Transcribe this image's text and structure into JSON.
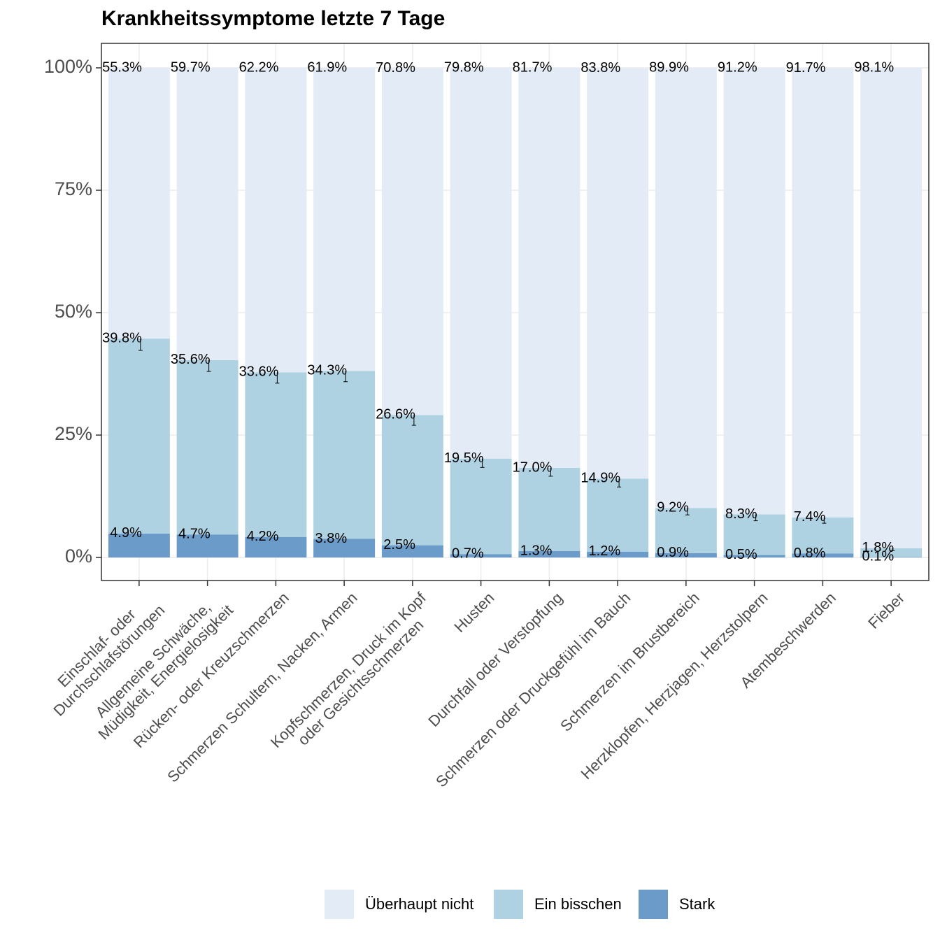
{
  "chart_data": {
    "type": "stacked_bar",
    "title": "Krankheitssymptome letzte 7 Tage",
    "categories": [
      "Einschlaf- oder\nDurchschlafstörungen",
      "Allgemeine Schwäche,\nMüdigkeit, Energielosigkeit",
      "Rücken- oder Kreuzschmerzen",
      "Schmerzen Schultern, Nacken, Armen",
      "Kopfschmerzen, Druck im Kopf\noder Gesichtsschmerzen",
      "Husten",
      "Durchfall oder Verstopfung",
      "Schmerzen oder Druckgefühl im Bauch",
      "Schmerzen im Brustbereich",
      "Herzklopfen, Herzjagen, Herzstolpern",
      "Atembeschwerden",
      "Fieber"
    ],
    "series": [
      {
        "name": "Überhaupt nicht",
        "color": "#e3ecf6",
        "values": [
          55.3,
          59.7,
          62.2,
          61.9,
          70.8,
          79.8,
          81.7,
          83.8,
          89.9,
          91.2,
          91.7,
          98.1
        ],
        "value_labels": [
          "55.3%",
          "59.7%",
          "62.2%",
          "61.9%",
          "70.8%",
          "79.8%",
          "81.7%",
          "83.8%",
          "89.9%",
          "91.2%",
          "91.7%",
          "98.1%"
        ]
      },
      {
        "name": "Ein bisschen",
        "color": "#afd2e3",
        "values": [
          39.8,
          35.6,
          33.6,
          34.3,
          26.6,
          19.5,
          17.0,
          14.9,
          9.2,
          8.3,
          7.4,
          1.8
        ],
        "value_labels": [
          "39.8%",
          "35.6%",
          "33.6%",
          "34.3%",
          "26.6%",
          "19.5%",
          "17.0%",
          "14.9%",
          "9.2%",
          "8.3%",
          "7.4%",
          "1.8%"
        ],
        "errors": [
          2.4,
          2.3,
          2.2,
          2.2,
          2.1,
          1.8,
          1.7,
          1.7,
          1.4,
          1.3,
          1.2,
          0.5
        ]
      },
      {
        "name": "Stark",
        "color": "#6b9bc8",
        "values": [
          4.9,
          4.7,
          4.2,
          3.8,
          2.5,
          0.7,
          1.3,
          1.2,
          0.9,
          0.5,
          0.8,
          0.1
        ],
        "value_labels": [
          "4.9%",
          "4.7%",
          "4.2%",
          "3.8%",
          "2.5%",
          "0.7%",
          "1.3%",
          "1.2%",
          "0.9%",
          "0.5%",
          "0.8%",
          "0.1%"
        ]
      }
    ],
    "ylim": [
      -4.7,
      105
    ],
    "yticks": [
      {
        "value": 0,
        "label": "0%"
      },
      {
        "value": 25,
        "label": "25%"
      },
      {
        "value": 50,
        "label": "50%"
      },
      {
        "value": 75,
        "label": "75%"
      },
      {
        "value": 100,
        "label": "100%"
      }
    ],
    "grid": true
  }
}
